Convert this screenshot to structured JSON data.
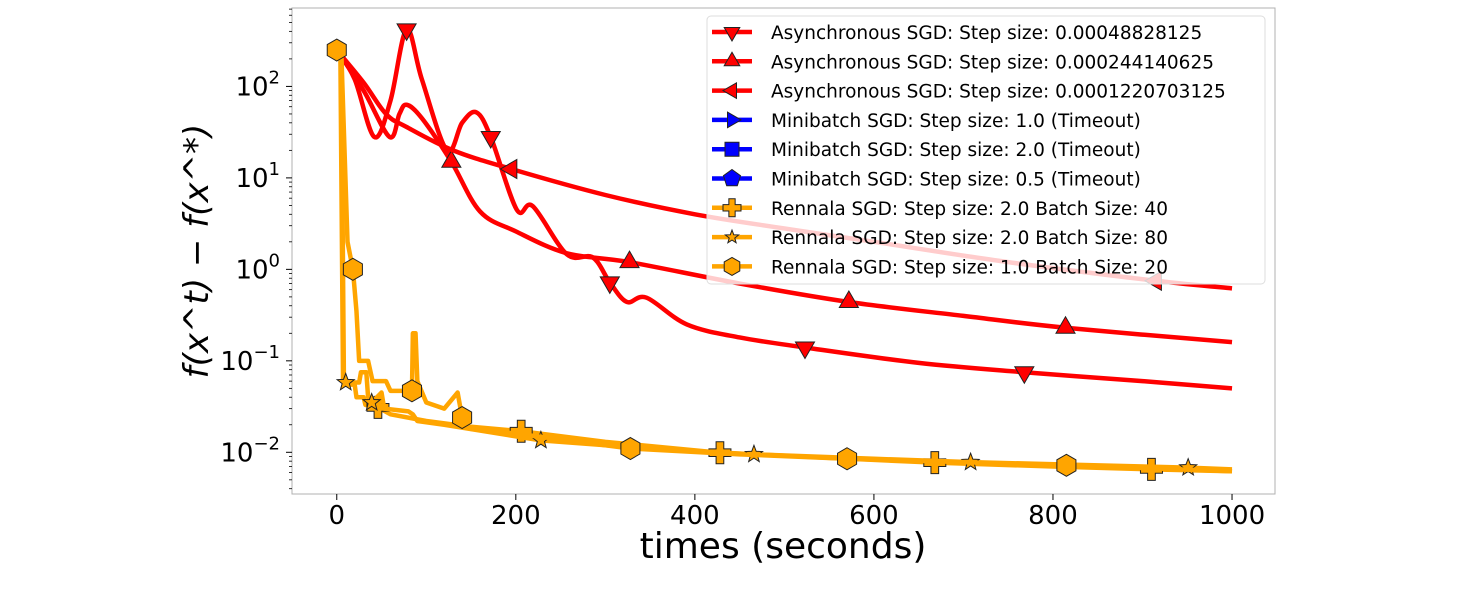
{
  "chart_data": {
    "type": "line",
    "title": "",
    "xlabel": "times (seconds)",
    "ylabel": "f(x^t) − f(x^*)",
    "ylabel_parts": {
      "f1": "f(x",
      "sup1": "t",
      "mid": ") − f(x",
      "sup2": "*",
      "end": ")"
    },
    "xscale": "linear",
    "yscale": "log",
    "xlim": [
      -50,
      1048
    ],
    "ylim": [
      0.0035,
      720
    ],
    "xticks": [
      0,
      200,
      400,
      600,
      800,
      1000
    ],
    "xtick_labels": [
      "0",
      "200",
      "400",
      "600",
      "800",
      "1000"
    ],
    "yticks": [
      100,
      10,
      1,
      0.1,
      0.01
    ],
    "ytick_labels": [
      {
        "base": "10",
        "exp": "2"
      },
      {
        "base": "10",
        "exp": "1"
      },
      {
        "base": "10",
        "exp": "0"
      },
      {
        "base": "10",
        "exp": "−1"
      },
      {
        "base": "10",
        "exp": "−2"
      }
    ],
    "grid": false,
    "legend_position": "top-right",
    "series": [
      {
        "name": "Asynchronous SGD: Step size: 0.00048828125",
        "color": "#ff0000",
        "marker": "triangle-down",
        "smooth": true,
        "x": [
          0,
          20,
          42,
          60,
          78,
          95,
          123,
          140,
          156,
          172,
          201,
          219,
          257,
          286,
          305,
          324,
          346,
          391,
          450,
          523,
          650,
          768,
          900,
          1000
        ],
        "y": [
          250,
          120,
          28,
          70,
          420,
          120,
          20,
          40,
          52,
          28,
          4.5,
          4.9,
          1.46,
          1.35,
          0.72,
          0.44,
          0.49,
          0.25,
          0.18,
          0.14,
          0.095,
          0.075,
          0.06,
          0.05
        ],
        "markers_x": [
          78,
          172,
          305,
          523,
          768
        ]
      },
      {
        "name": "Asynchronous SGD: Step size: 0.000244140625",
        "color": "#ff0000",
        "marker": "triangle-up",
        "smooth": true,
        "x": [
          0,
          30,
          59,
          70,
          78,
          95,
          128,
          160,
          200,
          257,
          327,
          450,
          572,
          700,
          814,
          1000
        ],
        "y": [
          250,
          90,
          28,
          50,
          63,
          45,
          15,
          4.3,
          2.6,
          1.5,
          1.2,
          0.7,
          0.44,
          0.31,
          0.23,
          0.16
        ],
        "markers_x": [
          128,
          327,
          572,
          814
        ]
      },
      {
        "name": "Asynchronous SGD: Step size: 0.0001220703125",
        "color": "#ff0000",
        "marker": "triangle-left",
        "smooth": true,
        "x": [
          0,
          30,
          55,
          78,
          130,
          195,
          300,
          400,
          500,
          600,
          750,
          915,
          1000
        ],
        "y": [
          250,
          110,
          50,
          36,
          20,
          12.5,
          6.5,
          4,
          2.8,
          2,
          1.2,
          0.75,
          0.62
        ],
        "markers_x": [
          195,
          915
        ]
      },
      {
        "name": "Minibatch SGD: Step size: 1.0 (Timeout)",
        "color": "#0000ff",
        "marker": "triangle-right",
        "x": [],
        "y": []
      },
      {
        "name": "Minibatch SGD: Step size: 2.0 (Timeout)",
        "color": "#0000ff",
        "marker": "square",
        "x": [],
        "y": []
      },
      {
        "name": "Minibatch SGD: Step size: 0.5 (Timeout)",
        "color": "#0000ff",
        "marker": "pentagon",
        "x": [],
        "y": []
      },
      {
        "name": "Rennala SGD: Step size: 2.0 Batch Size: 40",
        "color": "#ffa500",
        "marker": "plus",
        "smooth": false,
        "x": [
          0,
          5,
          8,
          10,
          20,
          22,
          30,
          32,
          46,
          60,
          100,
          150,
          206,
          300,
          428,
          550,
          668,
          800,
          910,
          1000
        ],
        "y": [
          250,
          250,
          0.06,
          0.055,
          0.055,
          0.04,
          0.04,
          0.033,
          0.031,
          0.026,
          0.022,
          0.019,
          0.017,
          0.013,
          0.0099,
          0.0087,
          0.0077,
          0.007,
          0.0065,
          0.0062
        ],
        "markers_x": [
          46,
          206,
          428,
          668,
          910
        ]
      },
      {
        "name": "Rennala SGD: Step size: 2.0 Batch Size: 80",
        "color": "#ffa500",
        "marker": "star",
        "smooth": false,
        "x": [
          0,
          4,
          7,
          10,
          25,
          27,
          33,
          35,
          39,
          50,
          53,
          80,
          85,
          90,
          120,
          228,
          350,
          466,
          600,
          708,
          851,
          951,
          1000
        ],
        "y": [
          250,
          250,
          0.06,
          0.058,
          0.058,
          0.075,
          0.075,
          0.04,
          0.035,
          0.045,
          0.03,
          0.028,
          0.026,
          0.022,
          0.02,
          0.0135,
          0.011,
          0.0095,
          0.0085,
          0.0078,
          0.0072,
          0.0068,
          0.0065
        ],
        "markers_x": [
          10,
          39,
          228,
          466,
          708,
          951
        ]
      },
      {
        "name": "Rennala SGD: Step size: 1.0 Batch Size: 20",
        "color": "#ffa500",
        "marker": "hexagon",
        "smooth": false,
        "x": [
          0,
          5,
          12,
          18,
          22,
          25,
          35,
          40,
          55,
          60,
          84,
          85,
          88,
          90,
          100,
          120,
          135,
          140,
          145,
          150,
          200,
          328,
          450,
          570,
          700,
          815,
          1000
        ],
        "y": [
          250,
          250,
          2,
          1.0,
          0.35,
          0.1,
          0.1,
          0.06,
          0.06,
          0.047,
          0.047,
          0.2,
          0.2,
          0.06,
          0.035,
          0.03,
          0.045,
          0.024,
          0.02,
          0.018,
          0.016,
          0.011,
          0.0095,
          0.0085,
          0.0078,
          0.0072,
          0.0062
        ],
        "markers_x": [
          0,
          18,
          84,
          140,
          328,
          570,
          815
        ]
      }
    ]
  }
}
